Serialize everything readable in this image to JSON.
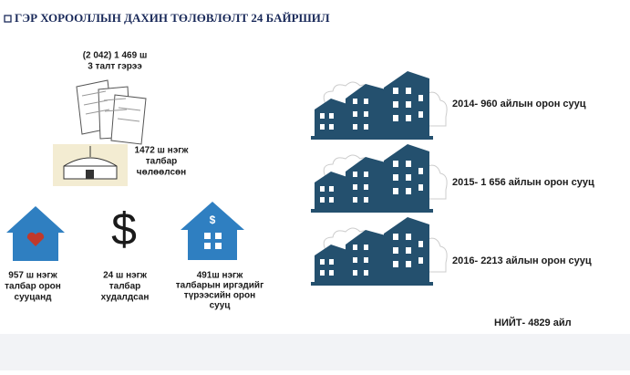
{
  "header": {
    "title": "ГЭР ХОРООЛЛЫН ДАХИН ТӨЛӨВЛӨЛТ 24 БАЙРШИЛ"
  },
  "contracts": {
    "lines": [
      "(2 042) 1 469 ш",
      "3 талт гэрээ"
    ]
  },
  "released": {
    "lines": [
      "1472 ш нэгж",
      "талбар",
      "чөлөөлсөн"
    ]
  },
  "items": [
    {
      "lines": [
        "957 ш нэгж",
        "талбар орон",
        "сууцанд"
      ]
    },
    {
      "lines": [
        "24 ш нэгж",
        "талбар",
        "худалдсан"
      ]
    },
    {
      "lines": [
        "491ш нэгж",
        "талбарын иргэдийг",
        "түрээсийн орон",
        "сууц"
      ]
    }
  ],
  "years": [
    "2014- 960 айлын орон сууц",
    "2015- 1 656 айлын орон сууц",
    "2016- 2213 айлын орон сууц"
  ],
  "total": "НИЙТ- 4829 айл"
}
